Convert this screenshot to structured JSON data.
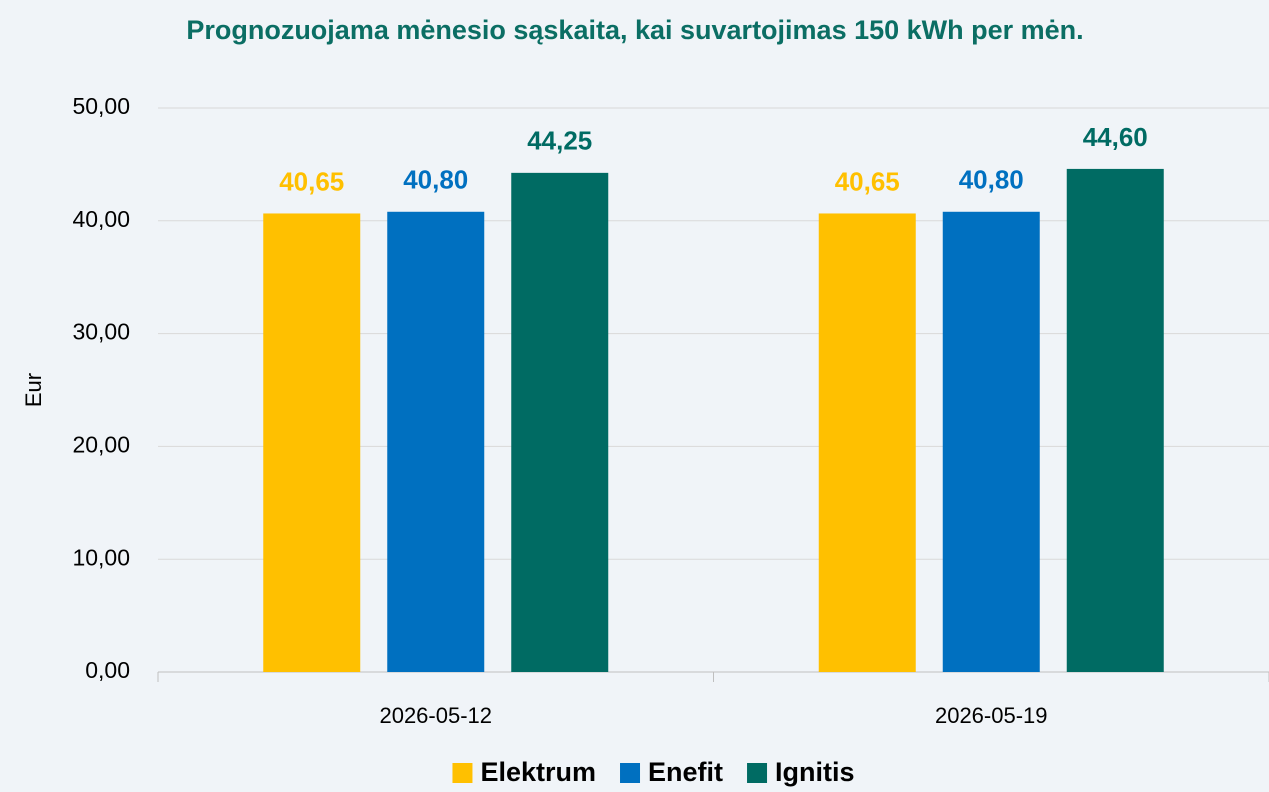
{
  "chart_data": {
    "type": "bar",
    "title": "Prognozuojama mėnesio sąskaita, kai suvartojimas 150 kWh per mėn.",
    "y_label": "Eur",
    "categories": [
      "2026-05-12",
      "2026-05-19"
    ],
    "series": [
      {
        "name": "Elektrum",
        "color": "#FFC000",
        "values": [
          40.65,
          40.65
        ],
        "value_labels": [
          "40,65",
          "40,65"
        ]
      },
      {
        "name": "Enefit",
        "color": "#0070C0",
        "values": [
          40.8,
          40.8
        ],
        "value_labels": [
          "40,80",
          "40,80"
        ]
      },
      {
        "name": "Ignitis",
        "color": "#006B63",
        "values": [
          44.25,
          44.6
        ],
        "value_labels": [
          "44,25",
          "44,60"
        ]
      }
    ],
    "ylim": [
      0,
      50
    ],
    "yticks": [
      {
        "value": 0,
        "label": "0,00"
      },
      {
        "value": 10,
        "label": "10,00"
      },
      {
        "value": 20,
        "label": "20,00"
      },
      {
        "value": 30,
        "label": "30,00"
      },
      {
        "value": 40,
        "label": "40,00"
      },
      {
        "value": 50,
        "label": "50,00"
      }
    ],
    "grid": true,
    "legend": "bottom"
  }
}
